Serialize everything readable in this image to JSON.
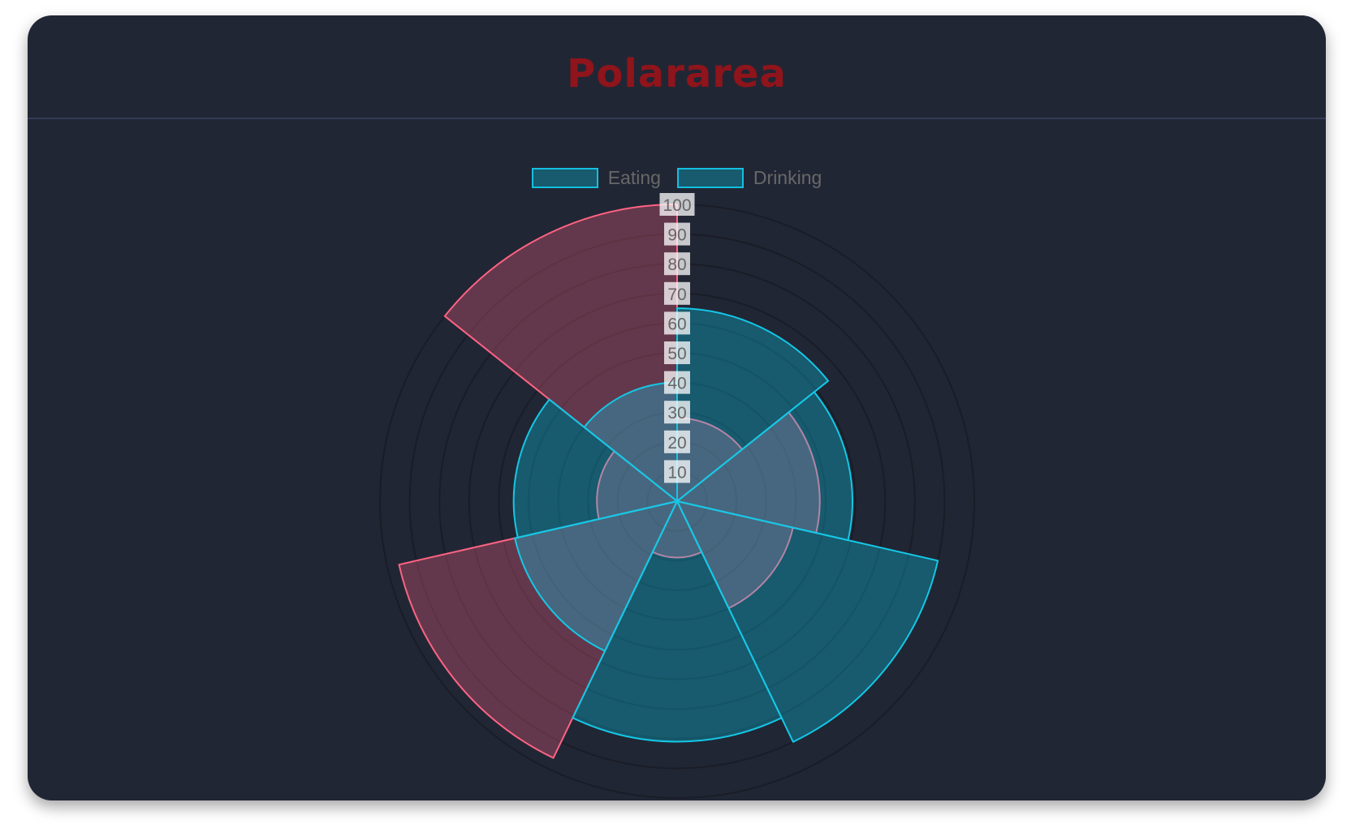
{
  "chart_data": {
    "type": "polarArea",
    "title": "Polararea",
    "legend": {
      "position": "top",
      "labels": [
        "Eating",
        "Drinking"
      ]
    },
    "rlim": [
      0,
      100
    ],
    "ticks": [
      "10",
      "20",
      "30",
      "40",
      "50",
      "60",
      "70",
      "80",
      "90",
      "100"
    ],
    "grid": true,
    "start_angle": "top",
    "series": [
      {
        "values": [
          28,
          48,
          40,
          19,
          96,
          27,
          100
        ],
        "color": "#ff6384"
      },
      {
        "values": [
          65,
          59,
          90,
          81,
          56,
          55,
          40
        ],
        "color": "#14c8e6"
      }
    ]
  },
  "colors": {
    "background": "#212634",
    "title": "#8f141b"
  }
}
